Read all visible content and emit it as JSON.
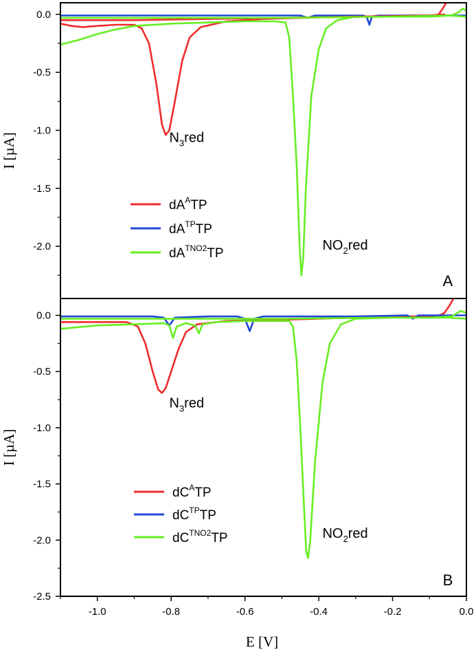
{
  "chart_data": [
    {
      "type": "line",
      "panel_label": "A",
      "ylabel": "I [µA]",
      "xlabel": "",
      "xlim": [
        -1.1,
        0.0
      ],
      "ylim": [
        -2.45,
        0.1
      ],
      "y_ticks": [
        0.0,
        -0.5,
        -1.0,
        -1.5,
        -2.0
      ],
      "y_tick_labels": [
        "0.0",
        "-0.5",
        "-1.0",
        "-1.5",
        "-2.0"
      ],
      "legend_position": "lower-left",
      "series": [
        {
          "name": "dA^A TP",
          "legend_base": "dA",
          "legend_sup": "A",
          "legend_tail": "TP",
          "color": "#ee2b2b",
          "points": [
            [
              -1.1,
              -0.08
            ],
            [
              -1.07,
              -0.1
            ],
            [
              -1.04,
              -0.11
            ],
            [
              -1.0,
              -0.1
            ],
            [
              -0.95,
              -0.09
            ],
            [
              -0.9,
              -0.09
            ],
            [
              -0.88,
              -0.12
            ],
            [
              -0.86,
              -0.25
            ],
            [
              -0.84,
              -0.6
            ],
            [
              -0.825,
              -0.95
            ],
            [
              -0.815,
              -1.04
            ],
            [
              -0.805,
              -1.0
            ],
            [
              -0.79,
              -0.75
            ],
            [
              -0.77,
              -0.4
            ],
            [
              -0.75,
              -0.2
            ],
            [
              -0.72,
              -0.11
            ],
            [
              -0.65,
              -0.06
            ],
            [
              -0.55,
              -0.04
            ],
            [
              -0.45,
              -0.03
            ],
            [
              -0.3,
              -0.02
            ],
            [
              -0.15,
              -0.01
            ],
            [
              -0.09,
              -0.01
            ],
            [
              -0.075,
              0.0
            ],
            [
              -0.062,
              0.06
            ],
            [
              -0.055,
              0.1
            ]
          ]
        },
        {
          "name": "dA^TP TP",
          "legend_base": "dA",
          "legend_sup": "TP",
          "legend_tail": "TP",
          "color": "#2148d6",
          "points": [
            [
              -1.1,
              -0.01
            ],
            [
              -0.9,
              -0.01
            ],
            [
              -0.6,
              -0.01
            ],
            [
              -0.45,
              -0.01
            ],
            [
              -0.43,
              -0.03
            ],
            [
              -0.41,
              -0.01
            ],
            [
              -0.28,
              -0.01
            ],
            [
              -0.27,
              -0.02
            ],
            [
              -0.263,
              -0.09
            ],
            [
              -0.256,
              -0.02
            ],
            [
              -0.24,
              -0.01
            ],
            [
              -0.1,
              -0.01
            ],
            [
              -0.03,
              -0.01
            ],
            [
              0.0,
              -0.01
            ]
          ]
        },
        {
          "name": "dA^TNO2 TP",
          "legend_base": "dA",
          "legend_sup": "TNO2",
          "legend_tail": "TP",
          "color": "#66ee22",
          "points": [
            [
              -1.1,
              -0.26
            ],
            [
              -1.05,
              -0.22
            ],
            [
              -1.0,
              -0.17
            ],
            [
              -0.95,
              -0.13
            ],
            [
              -0.9,
              -0.1
            ],
            [
              -0.8,
              -0.08
            ],
            [
              -0.7,
              -0.07
            ],
            [
              -0.6,
              -0.06
            ],
            [
              -0.52,
              -0.06
            ],
            [
              -0.49,
              -0.07
            ],
            [
              -0.48,
              -0.2
            ],
            [
              -0.47,
              -0.7
            ],
            [
              -0.46,
              -1.3
            ],
            [
              -0.452,
              -2.0
            ],
            [
              -0.447,
              -2.25
            ],
            [
              -0.442,
              -2.1
            ],
            [
              -0.435,
              -1.5
            ],
            [
              -0.42,
              -0.7
            ],
            [
              -0.4,
              -0.3
            ],
            [
              -0.38,
              -0.12
            ],
            [
              -0.35,
              -0.05
            ],
            [
              -0.3,
              -0.02
            ],
            [
              -0.2,
              -0.02
            ],
            [
              -0.1,
              -0.02
            ],
            [
              -0.04,
              -0.01
            ],
            [
              -0.02,
              0.02
            ],
            [
              -0.01,
              0.05
            ],
            [
              0.0,
              0.03
            ]
          ]
        },
        {
          "name": "dA^A TP (return sweep)",
          "color": "#ee2b2b",
          "points": [
            [
              -1.1,
              -0.05
            ],
            [
              -0.9,
              -0.05
            ],
            [
              -0.7,
              -0.04
            ],
            [
              -0.5,
              -0.03
            ],
            [
              -0.3,
              -0.02
            ],
            [
              -0.1,
              -0.01
            ],
            [
              -0.06,
              0.0
            ]
          ]
        },
        {
          "name": "dA^TNO2 TP (return sweep)",
          "color": "#66ee22",
          "points": [
            [
              -1.1,
              -0.03
            ],
            [
              -0.8,
              -0.03
            ],
            [
              -0.5,
              -0.03
            ],
            [
              -0.2,
              -0.02
            ],
            [
              -0.05,
              -0.01
            ],
            [
              0.0,
              -0.02
            ]
          ]
        }
      ],
      "annotations": [
        {
          "base": "N",
          "sub": "3",
          "tail": "red",
          "x": -0.805,
          "y": -1.1
        },
        {
          "base": "NO",
          "sub": "2",
          "tail": "red",
          "x": -0.39,
          "y": -2.03
        }
      ]
    },
    {
      "type": "line",
      "panel_label": "B",
      "ylabel": "I [µA]",
      "xlabel": "E [V]",
      "xlim": [
        -1.1,
        0.0
      ],
      "ylim": [
        -2.5,
        0.15
      ],
      "x_ticks": [
        -1.0,
        -0.8,
        -0.6,
        -0.4,
        -0.2,
        0.0
      ],
      "x_tick_labels": [
        "-1.0",
        "-0.8",
        "-0.6",
        "-0.4",
        "-0.2",
        "0.0"
      ],
      "y_ticks": [
        0.0,
        -0.5,
        -1.0,
        -1.5,
        -2.0,
        -2.5
      ],
      "y_tick_labels": [
        "0.0",
        "-0.5",
        "-1.0",
        "-1.5",
        "-2.0",
        "-2.5"
      ],
      "legend_position": "lower-left",
      "series": [
        {
          "name": "dC^A TP",
          "legend_base": "dC",
          "legend_sup": "A",
          "legend_tail": "TP",
          "color": "#ee2b2b",
          "points": [
            [
              -1.1,
              -0.06
            ],
            [
              -1.0,
              -0.06
            ],
            [
              -0.92,
              -0.06
            ],
            [
              -0.89,
              -0.1
            ],
            [
              -0.87,
              -0.25
            ],
            [
              -0.85,
              -0.5
            ],
            [
              -0.835,
              -0.66
            ],
            [
              -0.825,
              -0.69
            ],
            [
              -0.815,
              -0.65
            ],
            [
              -0.8,
              -0.5
            ],
            [
              -0.78,
              -0.3
            ],
            [
              -0.76,
              -0.15
            ],
            [
              -0.73,
              -0.08
            ],
            [
              -0.65,
              -0.05
            ],
            [
              -0.5,
              -0.04
            ],
            [
              -0.3,
              -0.02
            ],
            [
              -0.15,
              -0.01
            ],
            [
              -0.08,
              -0.01
            ],
            [
              -0.06,
              0.02
            ],
            [
              -0.045,
              0.09
            ],
            [
              -0.035,
              0.15
            ]
          ]
        },
        {
          "name": "dC^TP TP",
          "legend_base": "dC",
          "legend_sup": "TP",
          "legend_tail": "TP",
          "color": "#2148d6",
          "points": [
            [
              -1.1,
              -0.01
            ],
            [
              -0.85,
              -0.01
            ],
            [
              -0.82,
              -0.02
            ],
            [
              -0.805,
              -0.09
            ],
            [
              -0.79,
              -0.02
            ],
            [
              -0.7,
              -0.01
            ],
            [
              -0.62,
              -0.01
            ],
            [
              -0.6,
              -0.03
            ],
            [
              -0.587,
              -0.14
            ],
            [
              -0.575,
              -0.03
            ],
            [
              -0.55,
              -0.01
            ],
            [
              -0.3,
              -0.01
            ],
            [
              -0.16,
              0.0
            ],
            [
              -0.145,
              -0.03
            ],
            [
              -0.13,
              0.0
            ],
            [
              0.0,
              0.0
            ]
          ]
        },
        {
          "name": "dC^TNO2 TP",
          "legend_base": "dC",
          "legend_sup": "TNO2",
          "legend_tail": "TP",
          "color": "#66ee22",
          "points": [
            [
              -1.1,
              -0.12
            ],
            [
              -1.0,
              -0.09
            ],
            [
              -0.9,
              -0.08
            ],
            [
              -0.82,
              -0.07
            ],
            [
              -0.805,
              -0.09
            ],
            [
              -0.795,
              -0.2
            ],
            [
              -0.785,
              -0.1
            ],
            [
              -0.76,
              -0.07
            ],
            [
              -0.735,
              -0.09
            ],
            [
              -0.725,
              -0.16
            ],
            [
              -0.715,
              -0.08
            ],
            [
              -0.68,
              -0.06
            ],
            [
              -0.6,
              -0.05
            ],
            [
              -0.52,
              -0.05
            ],
            [
              -0.48,
              -0.05
            ],
            [
              -0.47,
              -0.1
            ],
            [
              -0.46,
              -0.4
            ],
            [
              -0.45,
              -1.0
            ],
            [
              -0.44,
              -1.7
            ],
            [
              -0.434,
              -2.1
            ],
            [
              -0.429,
              -2.16
            ],
            [
              -0.423,
              -2.0
            ],
            [
              -0.41,
              -1.3
            ],
            [
              -0.39,
              -0.6
            ],
            [
              -0.37,
              -0.25
            ],
            [
              -0.34,
              -0.08
            ],
            [
              -0.3,
              -0.03
            ],
            [
              -0.2,
              -0.02
            ],
            [
              -0.1,
              -0.02
            ],
            [
              -0.04,
              -0.01
            ],
            [
              -0.015,
              0.04
            ],
            [
              0.0,
              0.02
            ]
          ]
        },
        {
          "name": "dC^TNO2 TP (return sweep)",
          "color": "#66ee22",
          "points": [
            [
              -1.1,
              -0.03
            ],
            [
              -0.8,
              -0.03
            ],
            [
              -0.5,
              -0.03
            ],
            [
              -0.2,
              -0.02
            ],
            [
              -0.05,
              -0.02
            ],
            [
              0.0,
              -0.03
            ]
          ]
        }
      ],
      "annotations": [
        {
          "base": "N",
          "sub": "3",
          "tail": "red",
          "x": -0.805,
          "y": -0.82
        },
        {
          "base": "NO",
          "sub": "2",
          "tail": "red",
          "x": -0.39,
          "y": -1.98
        }
      ]
    }
  ]
}
